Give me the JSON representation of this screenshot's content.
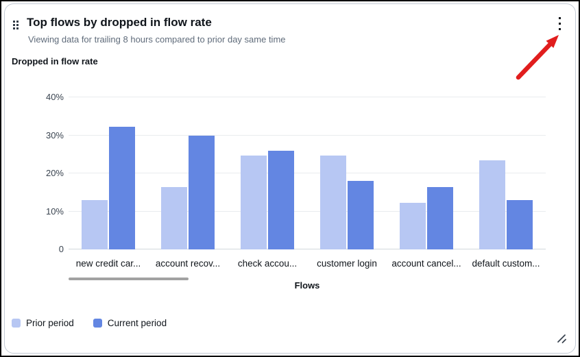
{
  "header": {
    "title": "Top flows by dropped in flow rate",
    "subtitle": "Viewing data for trailing 8 hours compared to prior day same time",
    "drag_handle_icon": "drag-handle-icon",
    "menu_icon": "kebab-menu-icon"
  },
  "chart_data": {
    "type": "bar",
    "title": "Dropped in flow rate",
    "categories": [
      "new credit car...",
      "account recov...",
      "check accou...",
      "customer login",
      "account cancel...",
      "default custom..."
    ],
    "series": [
      {
        "name": "Prior period",
        "color": "#b7c7f3",
        "values": [
          13.0,
          16.4,
          24.6,
          24.6,
          12.2,
          23.5
        ]
      },
      {
        "name": "Current period",
        "color": "#6386e2",
        "values": [
          32.3,
          30.0,
          26.0,
          18.0,
          16.4,
          13.0
        ]
      }
    ],
    "xlabel": "Flows",
    "ylim": [
      0,
      40
    ],
    "ytick_values": [
      0,
      10,
      20,
      30,
      40
    ],
    "ytick_labels": [
      "0",
      "10%",
      "20%",
      "30%",
      "40%"
    ],
    "grid": true,
    "legend_position": "bottom-left"
  },
  "annotation": {
    "type": "arrow",
    "color": "#e11d1d"
  },
  "colors": {
    "text_primary": "#0f141a",
    "text_secondary": "#5f6b7a",
    "gridline": "#e9ecee",
    "axis_line": "#d2d7dc",
    "scrollbar_thumb": "#a2a2a2",
    "card_border": "#c3cad4"
  }
}
